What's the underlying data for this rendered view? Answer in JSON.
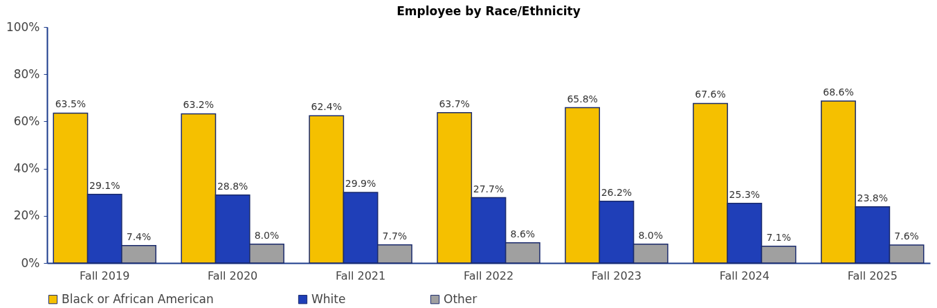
{
  "chart_data": {
    "type": "bar",
    "title": "Employee by Race/Ethnicity",
    "categories": [
      "Fall 2019",
      "Fall 2020",
      "Fall 2021",
      "Fall 2022",
      "Fall 2023",
      "Fall 2024",
      "Fall 2025"
    ],
    "series": [
      {
        "name": "Black or African American",
        "color": "#f5c000",
        "values": [
          63.5,
          63.2,
          62.4,
          63.7,
          65.8,
          67.6,
          68.6
        ],
        "value_labels": [
          "63.5%",
          "63.2%",
          "62.4%",
          "63.7%",
          "65.8%",
          "67.6%",
          "68.6%"
        ]
      },
      {
        "name": "White",
        "color": "#1f3fb8",
        "values": [
          29.1,
          28.8,
          29.9,
          27.7,
          26.2,
          25.3,
          23.8
        ],
        "value_labels": [
          "29.1%",
          "28.8%",
          "29.9%",
          "27.7%",
          "26.2%",
          "25.3%",
          "23.8%"
        ]
      },
      {
        "name": "Other",
        "color": "#a0a0a0",
        "values": [
          7.4,
          8.0,
          7.7,
          8.6,
          8.0,
          7.1,
          7.6
        ],
        "value_labels": [
          "7.4%",
          "8.0%",
          "7.7%",
          "8.6%",
          "8.0%",
          "7.1%",
          "7.6%"
        ]
      }
    ],
    "ylim": [
      0,
      100
    ],
    "yticks": [
      {
        "value": 0,
        "label": "0%"
      },
      {
        "value": 20,
        "label": "20%"
      },
      {
        "value": 40,
        "label": "40%"
      },
      {
        "value": 60,
        "label": "60%"
      },
      {
        "value": 80,
        "label": "80%"
      },
      {
        "value": 100,
        "label": "100%"
      }
    ],
    "grid": false,
    "legend": "bottom"
  }
}
